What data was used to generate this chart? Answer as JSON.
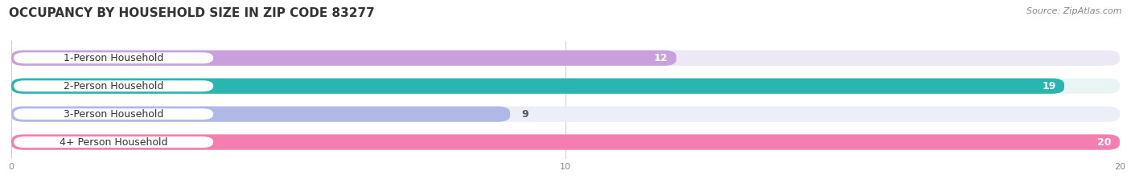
{
  "title": "OCCUPANCY BY HOUSEHOLD SIZE IN ZIP CODE 83277",
  "source": "Source: ZipAtlas.com",
  "categories": [
    "1-Person Household",
    "2-Person Household",
    "3-Person Household",
    "4+ Person Household"
  ],
  "values": [
    12,
    19,
    9,
    20
  ],
  "bar_colors": [
    "#c9a0dc",
    "#2ab5b0",
    "#b0b8e8",
    "#f47eb0"
  ],
  "bar_bg_colors": [
    "#ede8f5",
    "#e8f5f4",
    "#eceef8",
    "#fde8f2"
  ],
  "value_inside": [
    true,
    true,
    false,
    true
  ],
  "xlim": [
    0,
    20
  ],
  "xticks": [
    0,
    10,
    20
  ],
  "title_fontsize": 11,
  "source_fontsize": 8,
  "label_fontsize": 9,
  "value_fontsize": 9,
  "background_color": "#ffffff"
}
